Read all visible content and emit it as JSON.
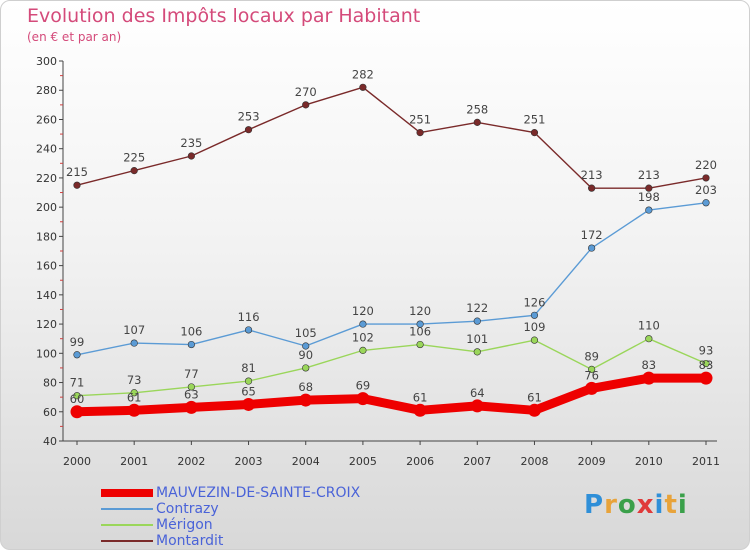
{
  "title": "Evolution des Impôts locaux par Habitant",
  "subtitle": "(en € et par an)",
  "logo": {
    "text": "Proxiti",
    "letters": [
      {
        "ch": "P",
        "color": "#2f8fd8"
      },
      {
        "ch": "r",
        "color": "#e8a33a"
      },
      {
        "ch": "o",
        "color": "#3aa04a"
      },
      {
        "ch": "x",
        "color": "#e03a3a"
      },
      {
        "ch": "i",
        "color": "#2f8fd8"
      },
      {
        "ch": "t",
        "color": "#e8a33a"
      },
      {
        "ch": "i",
        "color": "#3aa04a"
      }
    ]
  },
  "chart_data": {
    "type": "line",
    "title": "Evolution des Impôts locaux par Habitant",
    "subtitle": "(en € et par an)",
    "xlabel": "",
    "ylabel": "",
    "ylim": [
      40,
      300
    ],
    "yticks": [
      40,
      60,
      80,
      100,
      120,
      140,
      160,
      180,
      200,
      220,
      240,
      260,
      280,
      300
    ],
    "grid": false,
    "legend": "bottom-left",
    "categories": [
      "2000",
      "2001",
      "2002",
      "2003",
      "2004",
      "2005",
      "2006",
      "2007",
      "2008",
      "2009",
      "2010",
      "2011"
    ],
    "series": [
      {
        "name": "MAUVEZIN-DE-SAINTE-CROIX",
        "color": "#ee0000",
        "emphasis": true,
        "values": [
          60,
          61,
          63,
          65,
          68,
          69,
          61,
          64,
          61,
          76,
          83,
          83
        ]
      },
      {
        "name": "Contrazy",
        "color": "#5b9bd5",
        "values": [
          99,
          107,
          106,
          116,
          105,
          120,
          120,
          122,
          126,
          172,
          198,
          203
        ]
      },
      {
        "name": "Mérigon",
        "color": "#9ad65a",
        "values": [
          71,
          73,
          77,
          81,
          90,
          102,
          106,
          101,
          109,
          89,
          110,
          93
        ]
      },
      {
        "name": "Montardit",
        "color": "#7a2a2a",
        "values": [
          215,
          225,
          235,
          253,
          270,
          282,
          251,
          258,
          251,
          213,
          213,
          220
        ]
      }
    ]
  }
}
